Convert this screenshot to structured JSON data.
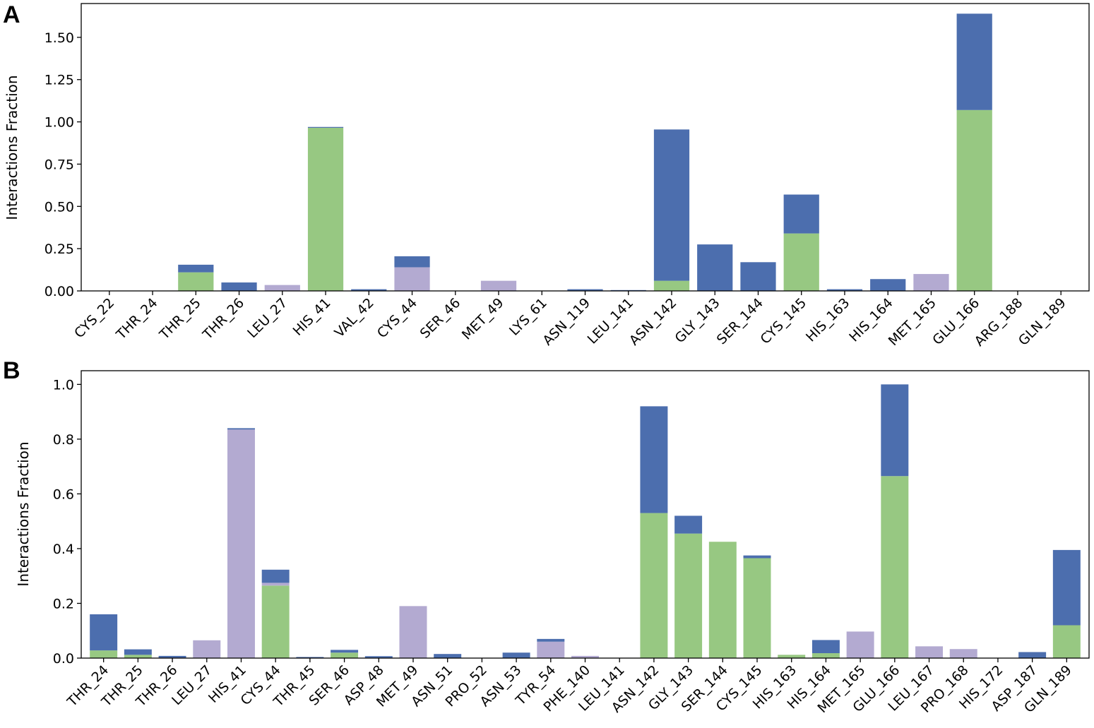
{
  "colors": {
    "hbond": "#4c6eae",
    "hydrophobic": "#97c882",
    "ionic": "#b3aad1"
  },
  "chart_data": [
    {
      "panel": "A",
      "type": "bar",
      "stacked": true,
      "ylabel": "Interactions Fraction",
      "ylim": [
        0,
        1.7
      ],
      "yticks": [
        "0.00",
        "0.25",
        "0.50",
        "0.75",
        "1.00",
        "1.25",
        "1.50"
      ],
      "categories": [
        "CYS_22",
        "THR_24",
        "THR_25",
        "THR_26",
        "LEU_27",
        "HIS_41",
        "VAL_42",
        "CYS_44",
        "SER_46",
        "MET_49",
        "LYS_61",
        "ASN_119",
        "LEU_141",
        "ASN_142",
        "GLY_143",
        "SER_144",
        "CYS_145",
        "HIS_163",
        "HIS_164",
        "MET_165",
        "GLU_166",
        "ARG_188",
        "GLN_189"
      ],
      "series": [
        {
          "color": "#97c882",
          "values": [
            0,
            0,
            0.11,
            0,
            0,
            0.965,
            0,
            0,
            0,
            0,
            0,
            0,
            0,
            0.06,
            0,
            0,
            0.34,
            0,
            0,
            0,
            1.07,
            0,
            0
          ]
        },
        {
          "color": "#b3aad1",
          "values": [
            0,
            0,
            0,
            0,
            0.035,
            0,
            0,
            0.14,
            0,
            0.06,
            0,
            0,
            0,
            0,
            0,
            0,
            0,
            0,
            0,
            0.1,
            0,
            0,
            0
          ]
        },
        {
          "color": "#4c6eae",
          "values": [
            0,
            0,
            0.045,
            0.05,
            0,
            0.005,
            0.01,
            0.065,
            0,
            0,
            0,
            0.01,
            0.005,
            0.895,
            0.275,
            0.17,
            0.23,
            0.01,
            0.07,
            0,
            0.57,
            0,
            0
          ]
        }
      ]
    },
    {
      "panel": "B",
      "type": "bar",
      "stacked": true,
      "ylabel": "Interactions Fraction",
      "ylim": [
        0,
        1.05
      ],
      "yticks": [
        "0.0",
        "0.2",
        "0.4",
        "0.6",
        "0.8",
        "1.0"
      ],
      "categories": [
        "THR_24",
        "THR_25",
        "THR_26",
        "LEU_27",
        "HIS_41",
        "CYS_44",
        "THR_45",
        "SER_46",
        "ASP_48",
        "MET_49",
        "ASN_51",
        "PRO_52",
        "ASN_53",
        "TYR_54",
        "PHE_140",
        "LEU_141",
        "ASN_142",
        "GLY_143",
        "SER_144",
        "CYS_145",
        "HIS_163",
        "HIS_164",
        "MET_165",
        "GLU_166",
        "LEU_167",
        "PRO_168",
        "HIS_172",
        "ASP_187",
        "GLN_189"
      ],
      "series": [
        {
          "color": "#97c882",
          "values": [
            0.028,
            0.012,
            0,
            0,
            0,
            0.265,
            0,
            0.02,
            0,
            0,
            0,
            0,
            0,
            0,
            0,
            0,
            0.53,
            0.455,
            0.425,
            0.365,
            0.012,
            0.018,
            0,
            0.665,
            0,
            0,
            0,
            0,
            0.12
          ]
        },
        {
          "color": "#b3aad1",
          "values": [
            0,
            0,
            0,
            0.065,
            0.835,
            0.01,
            0,
            0,
            0,
            0.19,
            0,
            0,
            0,
            0.06,
            0.008,
            0,
            0,
            0,
            0,
            0,
            0,
            0,
            0.097,
            0,
            0.043,
            0.033,
            0,
            0,
            0
          ]
        },
        {
          "color": "#4c6eae",
          "values": [
            0.132,
            0.02,
            0.008,
            0,
            0.005,
            0.048,
            0.004,
            0.01,
            0.007,
            0,
            0.015,
            0,
            0.02,
            0.01,
            0,
            0,
            0.39,
            0.065,
            0,
            0.01,
            0,
            0.048,
            0,
            0.335,
            0,
            0,
            0,
            0.022,
            0.275
          ]
        }
      ]
    }
  ]
}
